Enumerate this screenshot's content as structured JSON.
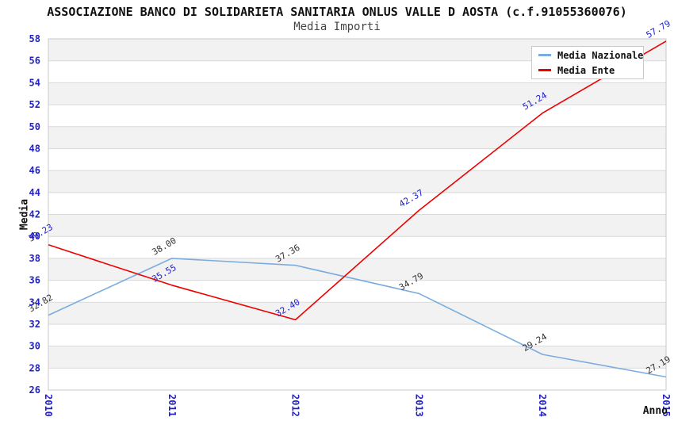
{
  "chart": {
    "title": "ASSOCIAZIONE BANCO DI SOLIDARIETA SANITARIA ONLUS VALLE D AOSTA (c.f.91055360076)",
    "subtitle": "Media Importi",
    "y_axis_title": "Media",
    "x_axis_title": "Anno"
  },
  "chart_data": {
    "type": "line",
    "x": [
      "2010",
      "2011",
      "2012",
      "2013",
      "2014",
      "2015"
    ],
    "series": [
      {
        "name": "Media Nazionale",
        "color": "#7cacdf",
        "label_color": "#333333",
        "values": [
          32.82,
          38.0,
          37.36,
          34.79,
          29.24,
          27.19
        ]
      },
      {
        "name": "Media Ente",
        "color": "#ee0000",
        "label_color": "#2222cc",
        "values": [
          39.23,
          35.55,
          32.4,
          42.37,
          51.24,
          57.79
        ]
      }
    ],
    "ylim": [
      26,
      58
    ],
    "ytick_step": 2,
    "xlabel": "Anno",
    "ylabel": "Media",
    "title": "Media Importi",
    "legend_position": "top-right",
    "grid": "horizontal-bands",
    "band_colors": [
      "#f2f2f2",
      "#ffffff"
    ],
    "gridline_color": "#d9d9d9",
    "axis_text_color": "#2222cc",
    "plot_border_color": "#c9c9c9"
  }
}
